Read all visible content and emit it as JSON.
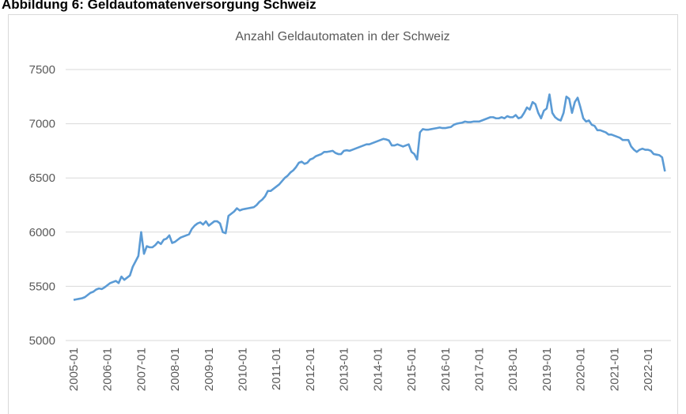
{
  "heading": "Abbildung 6: Geldautomatenversorgung Schweiz",
  "chart_data": {
    "type": "line",
    "title": "Anzahl Geldautomaten in der Schweiz",
    "categories": [
      "2005-01",
      null,
      null,
      null,
      null,
      null,
      null,
      null,
      null,
      null,
      null,
      null,
      "2006-01",
      null,
      null,
      null,
      null,
      null,
      null,
      null,
      null,
      null,
      null,
      null,
      "2007-01",
      null,
      null,
      null,
      null,
      null,
      null,
      null,
      null,
      null,
      null,
      null,
      "2008-01",
      null,
      null,
      null,
      null,
      null,
      null,
      null,
      null,
      null,
      null,
      null,
      "2009-01",
      null,
      null,
      null,
      null,
      null,
      null,
      null,
      null,
      null,
      null,
      null,
      "2010-01",
      null,
      null,
      null,
      null,
      null,
      null,
      null,
      null,
      null,
      null,
      null,
      "2011-01",
      null,
      null,
      null,
      null,
      null,
      null,
      null,
      null,
      null,
      null,
      null,
      "2012-01",
      null,
      null,
      null,
      null,
      null,
      null,
      null,
      null,
      null,
      null,
      null,
      "2013-01",
      null,
      null,
      null,
      null,
      null,
      null,
      null,
      null,
      null,
      null,
      null,
      "2014-01",
      null,
      null,
      null,
      null,
      null,
      null,
      null,
      null,
      null,
      null,
      null,
      "2015-01",
      null,
      null,
      null,
      null,
      null,
      null,
      null,
      null,
      null,
      null,
      null,
      "2016-01",
      null,
      null,
      null,
      null,
      null,
      null,
      null,
      null,
      null,
      null,
      null,
      "2017-01",
      null,
      null,
      null,
      null,
      null,
      null,
      null,
      null,
      null,
      null,
      null,
      "2018-01",
      null,
      null,
      null,
      null,
      null,
      null,
      null,
      null,
      null,
      null,
      null,
      "2019-01",
      null,
      null,
      null,
      null,
      null,
      null,
      null,
      null,
      null,
      null,
      null,
      "2020-01",
      null,
      null,
      null,
      null,
      null,
      null,
      null,
      null,
      null,
      null,
      null,
      "2021-01",
      null,
      null,
      null,
      null,
      null,
      null,
      null,
      null,
      null,
      null,
      null,
      "2022-01",
      null,
      null,
      null,
      null,
      null,
      null
    ],
    "series": [
      {
        "name": "Anzahl Geldautomaten",
        "color": "#5b9bd5",
        "values": [
          5375,
          5380,
          5385,
          5390,
          5400,
          5420,
          5440,
          5450,
          5470,
          5480,
          5475,
          5490,
          5510,
          5530,
          5540,
          5550,
          5530,
          5590,
          5560,
          5580,
          5600,
          5680,
          5730,
          5780,
          6000,
          5800,
          5870,
          5860,
          5860,
          5880,
          5910,
          5890,
          5930,
          5940,
          5970,
          5900,
          5910,
          5930,
          5950,
          5960,
          5970,
          5980,
          6030,
          6060,
          6080,
          6090,
          6070,
          6100,
          6060,
          6080,
          6100,
          6100,
          6080,
          6000,
          5990,
          6150,
          6170,
          6190,
          6220,
          6200,
          6210,
          6215,
          6220,
          6225,
          6230,
          6250,
          6280,
          6300,
          6330,
          6380,
          6380,
          6400,
          6420,
          6440,
          6470,
          6500,
          6520,
          6550,
          6570,
          6600,
          6640,
          6650,
          6630,
          6640,
          6670,
          6680,
          6700,
          6710,
          6720,
          6740,
          6740,
          6745,
          6750,
          6730,
          6720,
          6720,
          6750,
          6755,
          6750,
          6760,
          6770,
          6780,
          6790,
          6800,
          6810,
          6810,
          6820,
          6830,
          6840,
          6850,
          6860,
          6855,
          6845,
          6800,
          6800,
          6810,
          6800,
          6790,
          6800,
          6810,
          6740,
          6720,
          6670,
          6920,
          6950,
          6945,
          6945,
          6950,
          6955,
          6960,
          6965,
          6960,
          6960,
          6965,
          6970,
          6990,
          7000,
          7005,
          7010,
          7020,
          7015,
          7015,
          7020,
          7020,
          7020,
          7030,
          7040,
          7050,
          7060,
          7060,
          7050,
          7050,
          7060,
          7050,
          7070,
          7060,
          7060,
          7080,
          7050,
          7060,
          7100,
          7150,
          7130,
          7200,
          7180,
          7100,
          7050,
          7120,
          7140,
          7270,
          7100,
          7060,
          7040,
          7030,
          7100,
          7250,
          7230,
          7100,
          7200,
          7240,
          7150,
          7050,
          7020,
          7030,
          6990,
          6980,
          6940,
          6940,
          6930,
          6920,
          6900,
          6900,
          6890,
          6880,
          6870,
          6850,
          6850,
          6850,
          6790,
          6760,
          6740,
          6760,
          6770,
          6760,
          6760,
          6750,
          6720,
          6715,
          6710,
          6690,
          6560
        ]
      }
    ],
    "ylim": [
      5000,
      7500
    ],
    "yticks": [
      5000,
      5500,
      6000,
      6500,
      7000,
      7500
    ],
    "grid": true
  }
}
